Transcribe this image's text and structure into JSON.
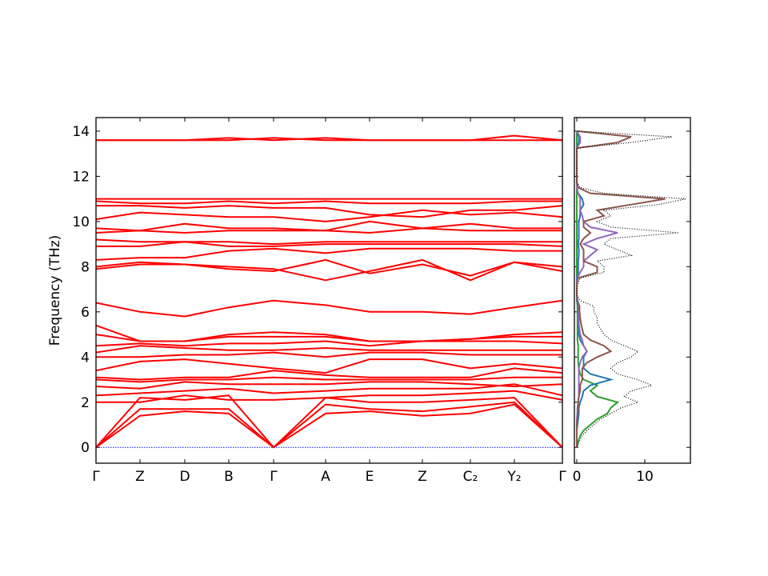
{
  "chart_data": [
    {
      "type": "band",
      "ylabel": "Frequency (THz)",
      "x": [
        0,
        0.55,
        1.11,
        1.66,
        2.22,
        2.87,
        3.42,
        4.08,
        4.68,
        5.23,
        5.83
      ],
      "xlim": [
        0,
        5.83
      ],
      "xticks": [
        {
          "value": 0,
          "label": "Γ"
        },
        {
          "value": 0.55,
          "label": "Z"
        },
        {
          "value": 1.11,
          "label": "D"
        },
        {
          "value": 1.66,
          "label": "B"
        },
        {
          "value": 2.22,
          "label": "Γ"
        },
        {
          "value": 2.87,
          "label": "A"
        },
        {
          "value": 3.42,
          "label": "E"
        },
        {
          "value": 4.08,
          "label": "Z"
        },
        {
          "value": 4.68,
          "label": "C₂"
        },
        {
          "value": 5.23,
          "label": "Y₂"
        },
        {
          "value": 5.83,
          "label": "Γ"
        }
      ],
      "ylim": [
        -0.7,
        14.6
      ],
      "yticks": [
        0,
        2,
        4,
        6,
        8,
        10,
        12,
        14
      ],
      "color": "#ff0000",
      "hline": 0,
      "hline_color": "#0000ff",
      "bands": [
        [
          0,
          1.4,
          1.6,
          1.5,
          0,
          1.5,
          1.6,
          1.4,
          1.5,
          1.9,
          0
        ],
        [
          0,
          1.7,
          1.7,
          1.7,
          0,
          1.9,
          1.7,
          1.6,
          1.8,
          2.0,
          0
        ],
        [
          0,
          2.2,
          2.1,
          2.3,
          0,
          2.2,
          2.0,
          2.0,
          2.1,
          2.2,
          0
        ],
        [
          2.0,
          2.0,
          2.3,
          2.1,
          2.1,
          2.2,
          2.3,
          2.3,
          2.4,
          2.5,
          2.1
        ],
        [
          2.3,
          2.4,
          2.5,
          2.6,
          2.4,
          2.5,
          2.6,
          2.6,
          2.6,
          2.8,
          2.3
        ],
        [
          2.7,
          2.6,
          2.9,
          2.8,
          2.8,
          2.8,
          2.9,
          2.9,
          2.8,
          2.7,
          2.8
        ],
        [
          3.0,
          2.9,
          3.0,
          3.0,
          3.1,
          3.0,
          3.0,
          3.0,
          3.0,
          3.1,
          3.1
        ],
        [
          3.1,
          3.0,
          3.1,
          3.1,
          3.4,
          3.2,
          3.1,
          3.1,
          3.1,
          3.5,
          3.3
        ],
        [
          3.4,
          3.8,
          3.9,
          3.7,
          3.5,
          3.3,
          3.9,
          3.9,
          3.5,
          3.7,
          3.5
        ],
        [
          4.0,
          4.0,
          4.1,
          4.1,
          4.2,
          4.0,
          4.2,
          4.2,
          4.1,
          4.1,
          4.1
        ],
        [
          4.2,
          4.5,
          4.4,
          4.3,
          4.3,
          4.4,
          4.3,
          4.3,
          4.3,
          4.3,
          4.3
        ],
        [
          4.5,
          4.6,
          4.5,
          4.6,
          4.6,
          4.7,
          4.5,
          4.7,
          4.7,
          4.7,
          4.6
        ],
        [
          5.0,
          4.7,
          4.7,
          4.9,
          4.9,
          4.9,
          4.7,
          4.7,
          4.8,
          4.9,
          4.9
        ],
        [
          5.4,
          4.7,
          4.7,
          5.0,
          5.1,
          5.0,
          4.7,
          4.7,
          4.8,
          5.0,
          5.1
        ],
        [
          6.4,
          6.0,
          5.8,
          6.2,
          6.5,
          6.3,
          6.0,
          6.0,
          5.9,
          6.2,
          6.5
        ],
        [
          7.9,
          8.1,
          8.1,
          7.9,
          7.8,
          8.3,
          7.7,
          8.1,
          7.6,
          8.2,
          7.8
        ],
        [
          8.0,
          8.2,
          8.1,
          8.0,
          7.9,
          7.4,
          7.8,
          8.3,
          7.4,
          8.2,
          8.0
        ],
        [
          8.3,
          8.4,
          8.4,
          8.7,
          8.8,
          8.6,
          8.8,
          8.8,
          8.8,
          8.7,
          8.7
        ],
        [
          8.9,
          8.9,
          9.1,
          8.9,
          8.9,
          9.0,
          9.0,
          9.0,
          9.0,
          9.0,
          8.9
        ],
        [
          9.2,
          9.1,
          9.1,
          9.1,
          9.0,
          9.1,
          9.1,
          9.1,
          9.1,
          9.1,
          9.1
        ],
        [
          9.5,
          9.6,
          9.5,
          9.6,
          9.6,
          9.6,
          9.5,
          9.7,
          9.6,
          9.6,
          9.6
        ],
        [
          9.7,
          9.6,
          9.9,
          9.7,
          9.7,
          9.6,
          10.0,
          9.7,
          9.9,
          9.7,
          9.7
        ],
        [
          10.1,
          10.4,
          10.3,
          10.2,
          10.2,
          10.0,
          10.2,
          10.5,
          10.3,
          10.4,
          10.2
        ],
        [
          10.7,
          10.7,
          10.6,
          10.7,
          10.6,
          10.6,
          10.3,
          10.2,
          10.5,
          10.5,
          10.7
        ],
        [
          10.9,
          10.8,
          10.8,
          10.9,
          10.8,
          10.9,
          10.8,
          10.8,
          10.8,
          10.9,
          10.9
        ],
        [
          11.0,
          11.0,
          11.0,
          11.0,
          11.0,
          11.0,
          11.0,
          11.0,
          11.0,
          11.0,
          11.0
        ],
        [
          13.6,
          13.6,
          13.6,
          13.7,
          13.6,
          13.7,
          13.6,
          13.6,
          13.6,
          13.8,
          13.6
        ],
        [
          13.6,
          13.6,
          13.6,
          13.6,
          13.7,
          13.6,
          13.6,
          13.6,
          13.6,
          13.6,
          13.6
        ]
      ]
    },
    {
      "type": "dos",
      "xlim": [
        -0.35,
        16.7
      ],
      "xticks": [
        0,
        10
      ],
      "ylim": [
        -0.7,
        14.6
      ],
      "yticks": [
        0,
        2,
        4,
        6,
        8,
        10,
        12,
        14
      ],
      "frequencies": [
        0,
        0.25,
        0.5,
        0.75,
        1,
        1.25,
        1.5,
        1.75,
        2,
        2.25,
        2.5,
        2.75,
        3,
        3.25,
        3.5,
        3.75,
        4,
        4.25,
        4.5,
        4.75,
        5,
        5.25,
        5.5,
        5.75,
        6,
        6.25,
        6.5,
        6.75,
        7,
        7.25,
        7.5,
        7.75,
        8,
        8.25,
        8.5,
        8.75,
        9,
        9.25,
        9.5,
        9.75,
        10,
        10.25,
        10.5,
        10.75,
        11,
        11.25,
        11.5,
        11.75,
        12,
        12.25,
        12.5,
        12.75,
        13,
        13.25,
        13.5,
        13.75,
        14
      ],
      "series": [
        {
          "color": "#2ca02c",
          "dotted": false,
          "values": [
            0,
            0.2,
            0.5,
            1,
            2,
            3,
            4.5,
            5,
            6,
            3,
            2,
            3,
            1,
            0.5,
            0.3,
            0.2,
            0.2,
            0.2,
            0.2,
            0.1,
            0.1,
            0.1,
            0.1,
            0.1,
            0.1,
            0.1,
            0,
            0,
            0,
            0,
            0,
            0,
            0,
            0,
            0,
            0,
            0,
            0,
            0,
            0,
            0,
            0,
            0,
            0,
            0,
            0,
            0,
            0,
            0,
            0,
            0,
            0,
            0,
            0,
            0,
            0,
            0
          ]
        },
        {
          "color": "#1f77b4",
          "dotted": false,
          "values": [
            0,
            0,
            0,
            0,
            0.1,
            0.2,
            0.3,
            0.3,
            0.5,
            0.8,
            1,
            2,
            5,
            2,
            1,
            1,
            1,
            1.5,
            1,
            0.5,
            0.3,
            0.3,
            0.2,
            0.2,
            0.2,
            0.2,
            0,
            0,
            0,
            0,
            0,
            0.2,
            0.2,
            0.2,
            0.3,
            0.3,
            0.2,
            0.3,
            0.3,
            0.3,
            0.3,
            0.5,
            0.5,
            1,
            0.8,
            0.2,
            0,
            0,
            0,
            0,
            0,
            0,
            0,
            0,
            0.3,
            0.3,
            0
          ]
        },
        {
          "color": "#9467bd",
          "dotted": false,
          "values": [
            0,
            0,
            0,
            0,
            0,
            0,
            0.1,
            0.1,
            0.2,
            0.3,
            0.3,
            0.3,
            0.3,
            0.3,
            0.3,
            0.5,
            0.8,
            1.5,
            1,
            0.8,
            0.5,
            0.4,
            0.3,
            0.3,
            0.3,
            0.3,
            0.1,
            0,
            0,
            0,
            0.1,
            0.5,
            1,
            1,
            2,
            3,
            1,
            3,
            6,
            2,
            1,
            0.8,
            0.5,
            0.5,
            0.5,
            0.2,
            0,
            0,
            0,
            0,
            0,
            0,
            0,
            0,
            0.5,
            0.5,
            0
          ]
        },
        {
          "color": "#8c564b",
          "dotted": false,
          "values": [
            0,
            0,
            0,
            0,
            0,
            0.1,
            0.1,
            0.2,
            0.2,
            0.3,
            0.5,
            0.5,
            0.8,
            0.8,
            0.8,
            1.5,
            3,
            5,
            4,
            2,
            1,
            0.8,
            0.6,
            0.5,
            0.4,
            0.4,
            0.1,
            0,
            0,
            0,
            0.2,
            3,
            3,
            1,
            1,
            1,
            0.5,
            1,
            2,
            1,
            1,
            4,
            3,
            8,
            13,
            2,
            0.2,
            0,
            0,
            0,
            0,
            0,
            0,
            0,
            6,
            8,
            0
          ]
        },
        {
          "color": "#000000",
          "dotted": true,
          "values": [
            0,
            0.3,
            0.8,
            1.5,
            2.5,
            3.5,
            5,
            6.5,
            9,
            7,
            8,
            11,
            9,
            6,
            5,
            6,
            8,
            9,
            7,
            5,
            4,
            3.5,
            3,
            3,
            2.5,
            2.5,
            0.5,
            0,
            0,
            0.2,
            0.5,
            4,
            4,
            3,
            8,
            6,
            4,
            5,
            15,
            5,
            3,
            5,
            4,
            12,
            16,
            4,
            0.5,
            0,
            0,
            0,
            0,
            0,
            0,
            0,
            8,
            14,
            0
          ]
        }
      ]
    }
  ]
}
